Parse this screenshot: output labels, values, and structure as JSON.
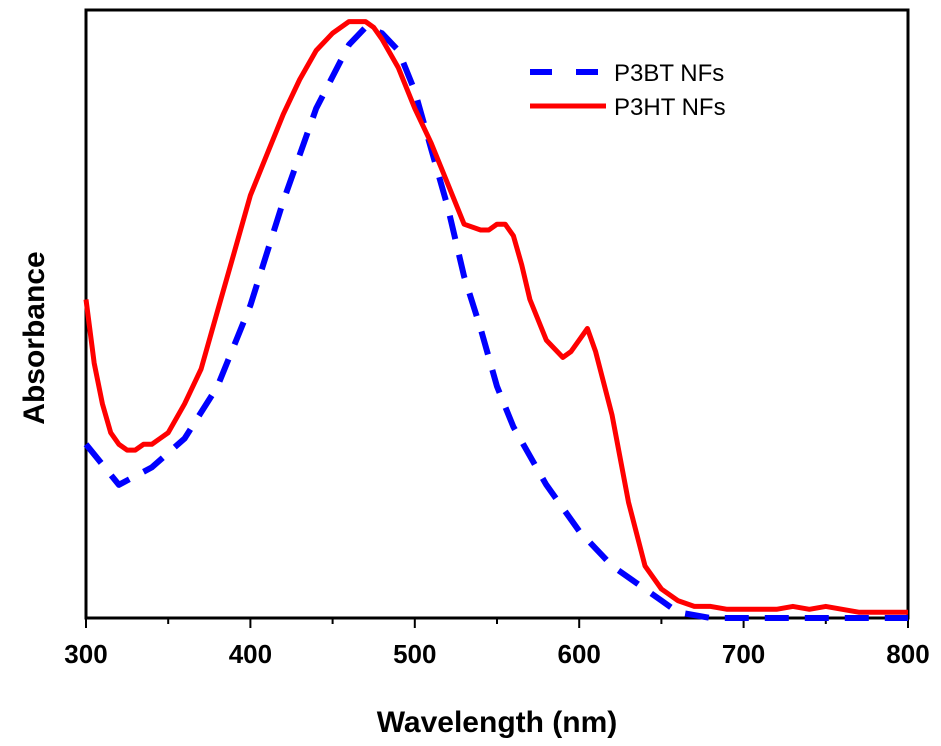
{
  "chart_data": {
    "type": "line",
    "xlabel": "Wavelength (nm)",
    "ylabel": "Absorbance",
    "xlim": [
      300,
      800
    ],
    "ylim": [
      0,
      1.05
    ],
    "xticks": [
      300,
      400,
      500,
      600,
      700,
      800
    ],
    "xtick_labels": [
      "300",
      "400",
      "500",
      "600",
      "700",
      "800"
    ],
    "y_tick_labels_shown": false,
    "grid": false,
    "legend_position": "top-right",
    "series": [
      {
        "name": "P3BT NFs",
        "color": "#0000ff",
        "style": "dashed",
        "x": [
          300,
          320,
          340,
          360,
          380,
          400,
          420,
          440,
          460,
          470,
          480,
          490,
          500,
          510,
          520,
          530,
          540,
          550,
          560,
          580,
          600,
          620,
          640,
          650,
          660,
          680,
          700,
          750,
          800
        ],
        "y": [
          0.3,
          0.23,
          0.26,
          0.31,
          0.4,
          0.54,
          0.72,
          0.88,
          0.99,
          1.02,
          1.01,
          0.98,
          0.91,
          0.81,
          0.71,
          0.59,
          0.5,
          0.4,
          0.33,
          0.23,
          0.15,
          0.09,
          0.05,
          0.03,
          0.01,
          0.0,
          0.0,
          0.0,
          0.0
        ]
      },
      {
        "name": "P3HT NFs",
        "color": "#ff0000",
        "style": "solid",
        "x": [
          300,
          305,
          310,
          315,
          320,
          325,
          330,
          335,
          340,
          345,
          350,
          360,
          370,
          380,
          390,
          400,
          410,
          420,
          430,
          440,
          450,
          460,
          465,
          470,
          475,
          480,
          490,
          500,
          510,
          520,
          530,
          540,
          545,
          550,
          555,
          560,
          565,
          570,
          580,
          590,
          595,
          600,
          605,
          610,
          620,
          630,
          640,
          650,
          660,
          670,
          680,
          690,
          700,
          710,
          720,
          730,
          740,
          750,
          760,
          770,
          780,
          790,
          800
        ],
        "y": [
          0.55,
          0.44,
          0.37,
          0.32,
          0.3,
          0.29,
          0.29,
          0.3,
          0.3,
          0.31,
          0.32,
          0.37,
          0.43,
          0.53,
          0.63,
          0.73,
          0.8,
          0.87,
          0.93,
          0.98,
          1.01,
          1.03,
          1.03,
          1.03,
          1.02,
          1.0,
          0.95,
          0.88,
          0.82,
          0.75,
          0.68,
          0.67,
          0.67,
          0.68,
          0.68,
          0.66,
          0.61,
          0.55,
          0.48,
          0.45,
          0.46,
          0.48,
          0.5,
          0.46,
          0.35,
          0.2,
          0.09,
          0.05,
          0.03,
          0.02,
          0.02,
          0.015,
          0.015,
          0.015,
          0.015,
          0.02,
          0.015,
          0.02,
          0.015,
          0.01,
          0.01,
          0.01,
          0.01
        ]
      }
    ]
  }
}
